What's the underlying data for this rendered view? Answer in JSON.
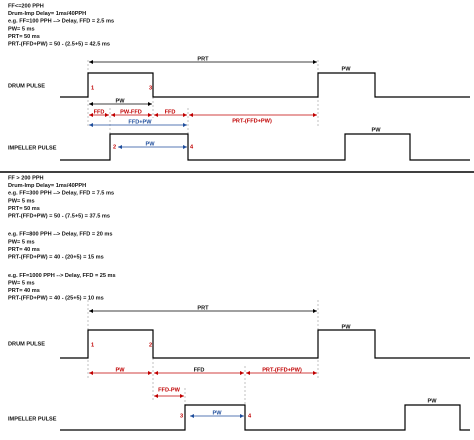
{
  "sections": [
    {
      "notes": [
        "FF<=200 PPH",
        "Drum-Imp Delay= 1ms/40PPH",
        "e.g. FF=100 PPH --> Delay, FFD = 2.5 ms",
        "PW= 5 ms",
        "PRT= 50 ms",
        "PRT-(FFD+PW) = 50 - (2.5+5) = 42.5 ms"
      ],
      "diagram": {
        "prt": "PRT",
        "drum_label": "DRUM PULSE",
        "drum_pw": "PW",
        "drum_markers": [
          "1",
          "3"
        ],
        "pw_span": "PW",
        "red_spans": [
          "FFD",
          "PW-FFD",
          "FFD",
          "PRT-(FFD+PW)"
        ],
        "blue_span": "FFD+PW",
        "impeller_label": "IMPELLER PULSE",
        "impeller_markers": [
          "2",
          "4"
        ],
        "impeller_pw_span": "PW",
        "impeller_pw": "PW"
      }
    },
    {
      "notes": [
        "FF > 200 PPH",
        "Drum-Imp Delay= 1ms/40PPH",
        "e.g. FF=300 PPH --> Delay, FFD = 7.5 ms",
        "PW= 5 ms",
        "PRT= 50 ms",
        "PRT-(FFD+PW) = 50 - (7.5+5) = 37.5 ms",
        "e.g. FF=800 PPH --> Delay, FFD = 20 ms",
        "PW= 5 ms",
        "PRT= 40 ms",
        "PRT-(FFD+PW) = 40 - (20+5) = 15 ms",
        "e.g. FF=1000 PPH --> Delay, FFD = 25 ms",
        "PW= 5 ms",
        "PRT= 40 ms",
        "PRT-(FFD+PW) = 40 - (25+5) = 10 ms"
      ],
      "diagram": {
        "prt": "PRT",
        "drum_label": "DRUM PULSE",
        "drum_pw": "PW",
        "drum_markers": [
          "1",
          "2"
        ],
        "red_spans": [
          "PW",
          "FFD",
          "PRT-(FFD+PW)"
        ],
        "red_low_span": "FFD-PW",
        "impeller_label": "IMPELLER PULSE",
        "impeller_markers": [
          "3",
          "4"
        ],
        "impeller_pw_span": "PW",
        "impeller_pw": "PW"
      }
    }
  ]
}
